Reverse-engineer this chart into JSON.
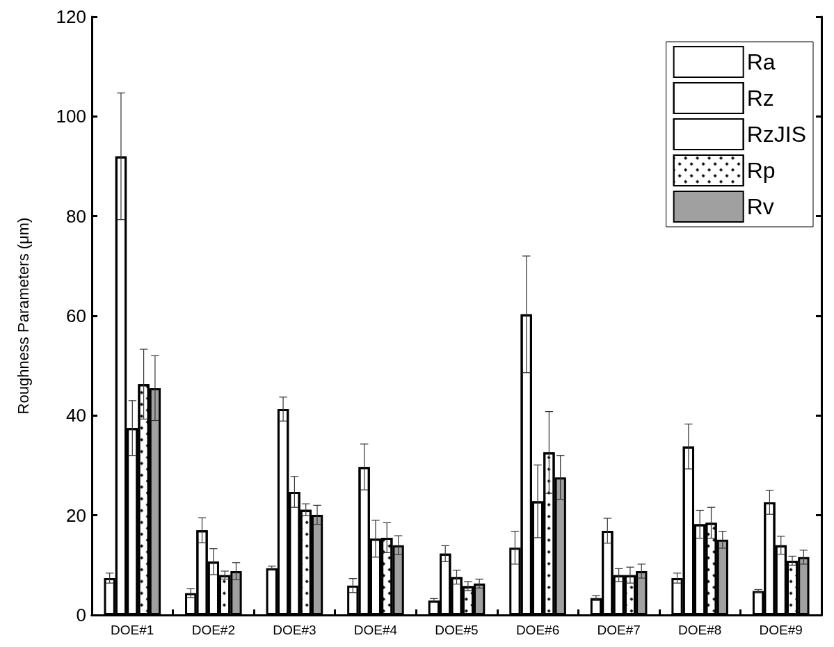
{
  "chart_data": {
    "type": "bar",
    "ylabel": "Roughness Parameters (μm)",
    "categories": [
      "DOE#1",
      "DOE#2",
      "DOE#3",
      "DOE#4",
      "DOE#5",
      "DOE#6",
      "DOE#7",
      "DOE#8",
      "DOE#9"
    ],
    "series": [
      {
        "name": "Ra",
        "color": "#ffffff",
        "values": [
          7.4,
          4.4,
          9.4,
          5.9,
          2.9,
          13.5,
          3.4,
          7.4,
          4.8
        ],
        "errors": [
          1,
          0.9,
          0.4,
          1.4,
          0.4,
          3.3,
          0.5,
          1,
          0.3
        ]
      },
      {
        "name": "Rz",
        "color": "#ffffff",
        "values": [
          92,
          17,
          41.3,
          29.7,
          12.3,
          60.3,
          16.9,
          33.8,
          22.6
        ],
        "errors": [
          12.7,
          2.5,
          2.4,
          4.6,
          1.6,
          11.7,
          2.5,
          4.5,
          2.4
        ]
      },
      {
        "name": "RzJIS",
        "color": "#ffffff",
        "values": [
          37.5,
          10.7,
          24.7,
          15.3,
          7.6,
          22.8,
          8,
          18.2,
          14
        ],
        "errors": [
          5.5,
          2.6,
          3.1,
          3.7,
          1.4,
          7.3,
          1.3,
          2.8,
          1.8
        ]
      },
      {
        "name": "Rp",
        "color": "#ffffff",
        "values": [
          46.3,
          8,
          21.1,
          15.5,
          5.8,
          32.6,
          8,
          18.5,
          10.9
        ],
        "errors": [
          7,
          0.8,
          1.2,
          3,
          0.9,
          8.2,
          1.6,
          3.1,
          0.9
        ]
      },
      {
        "name": "Rv",
        "color": "#a0a0a0",
        "values": [
          45.5,
          8.8,
          20.1,
          14,
          6.3,
          27.6,
          8.8,
          15.1,
          11.6
        ],
        "errors": [
          6.5,
          1.7,
          1.9,
          1.9,
          0.9,
          4.4,
          1.4,
          1.7,
          1.4
        ]
      }
    ],
    "ylim": [
      0,
      120
    ],
    "yticks": [
      0,
      20,
      40,
      60,
      80,
      100,
      120
    ],
    "grid": false,
    "legend": "top right"
  }
}
